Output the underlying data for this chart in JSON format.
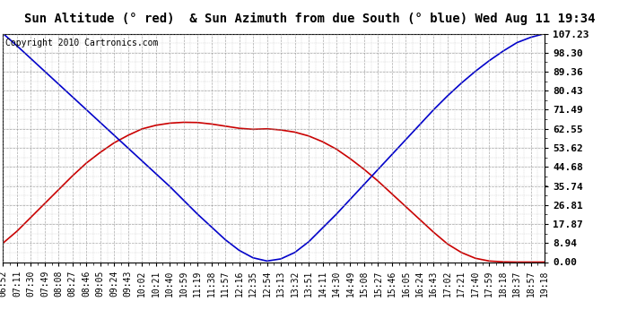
{
  "title": "Sun Altitude (° red)  & Sun Azimuth from due South (° blue) Wed Aug 11 19:34",
  "copyright": "Copyright 2010 Cartronics.com",
  "yticks": [
    0.0,
    8.94,
    17.87,
    26.81,
    35.74,
    44.68,
    53.62,
    62.55,
    71.49,
    80.43,
    89.36,
    98.3,
    107.23
  ],
  "ymin": 0.0,
  "ymax": 107.23,
  "x_labels": [
    "06:52",
    "07:11",
    "07:30",
    "07:49",
    "08:08",
    "08:27",
    "08:46",
    "09:05",
    "09:24",
    "09:43",
    "10:02",
    "10:21",
    "10:40",
    "10:59",
    "11:19",
    "11:38",
    "11:57",
    "12:16",
    "12:35",
    "12:54",
    "13:13",
    "13:32",
    "13:51",
    "14:11",
    "14:30",
    "14:49",
    "15:08",
    "15:27",
    "15:46",
    "16:05",
    "16:24",
    "16:43",
    "17:02",
    "17:21",
    "17:40",
    "17:59",
    "18:18",
    "18:37",
    "18:57",
    "19:18"
  ],
  "altitude_values": [
    8.94,
    14.5,
    21.0,
    27.5,
    34.0,
    40.5,
    46.5,
    51.5,
    56.0,
    59.5,
    62.5,
    64.2,
    65.2,
    65.6,
    65.5,
    64.8,
    63.8,
    62.8,
    62.3,
    62.55,
    62.0,
    61.0,
    59.2,
    56.5,
    53.0,
    48.5,
    43.5,
    38.0,
    32.0,
    26.0,
    20.0,
    14.0,
    8.5,
    4.5,
    1.8,
    0.5,
    0.1,
    0.0,
    0.0,
    0.0
  ],
  "azimuth_values": [
    107.23,
    101.5,
    95.5,
    89.5,
    83.5,
    77.5,
    71.5,
    65.5,
    59.5,
    53.5,
    47.5,
    41.5,
    35.5,
    29.0,
    22.5,
    16.5,
    10.5,
    5.5,
    2.0,
    0.5,
    1.5,
    4.5,
    9.5,
    16.0,
    22.5,
    29.5,
    36.5,
    43.5,
    50.5,
    57.5,
    64.5,
    71.5,
    78.0,
    84.0,
    89.5,
    94.5,
    99.0,
    103.0,
    105.5,
    107.23
  ],
  "altitude_color": "#cc0000",
  "azimuth_color": "#0000cc",
  "bg_color": "#ffffff",
  "plot_bg_color": "#ffffff",
  "grid_color": "#888888",
  "title_bg": "#dddddd",
  "title_fontsize": 10,
  "copyright_fontsize": 7,
  "tick_fontsize": 7,
  "ytick_fontsize": 8
}
